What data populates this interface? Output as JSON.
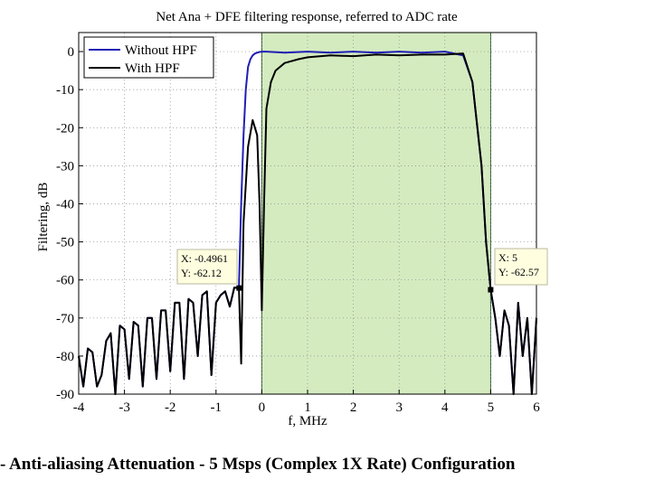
{
  "chart_data": {
    "type": "line",
    "title": "Net Ana + DFE filtering response, referred to ADC rate",
    "xlabel": "f, MHz",
    "ylabel": "Filtering, dB",
    "xlim": [
      -4,
      6
    ],
    "ylim": [
      -90,
      5
    ],
    "xticks": [
      "-4",
      "-3",
      "-2",
      "-1",
      "0",
      "1",
      "2",
      "3",
      "4",
      "5",
      "6"
    ],
    "yticks": [
      "0",
      "-10",
      "-20",
      "-30",
      "-40",
      "-50",
      "-60",
      "-70",
      "-80",
      "-90"
    ],
    "grid": true,
    "legend_position": "top-left",
    "passband_region": {
      "x_start": 0,
      "x_end": 5,
      "color": "#d4ebc0"
    },
    "series": [
      {
        "name": "Without HPF",
        "color": "#1f1fb4",
        "x": [
          -4,
          -3.9,
          -3.8,
          -3.7,
          -3.6,
          -3.5,
          -3.4,
          -3.3,
          -3.2,
          -3.1,
          -3.0,
          -2.9,
          -2.8,
          -2.7,
          -2.6,
          -2.5,
          -2.4,
          -2.3,
          -2.2,
          -2.1,
          -2.0,
          -1.9,
          -1.8,
          -1.7,
          -1.6,
          -1.5,
          -1.4,
          -1.3,
          -1.2,
          -1.1,
          -1.0,
          -0.9,
          -0.8,
          -0.7,
          -0.6,
          -0.5,
          -0.45,
          -0.4,
          -0.35,
          -0.3,
          -0.25,
          -0.2,
          -0.15,
          -0.1,
          -0.05,
          0,
          0.1,
          0.5,
          1,
          1.5,
          2,
          2.5,
          3,
          3.5,
          4,
          4.4,
          4.6,
          4.8,
          4.9,
          5.0,
          5.1,
          5.2,
          5.3,
          5.4,
          5.5,
          5.6,
          5.7,
          5.8,
          5.9,
          6.0
        ],
        "y": [
          -80,
          -88,
          -78,
          -79,
          -88,
          -85,
          -76,
          -74,
          -90,
          -72,
          -73,
          -86,
          -71,
          -72,
          -88,
          -70,
          -70,
          -86,
          -68,
          -68,
          -84,
          -66,
          -66,
          -86,
          -65,
          -66,
          -80,
          -64,
          -63,
          -85,
          -66,
          -64,
          -63,
          -67,
          -62,
          -62.12,
          -40,
          -22,
          -10,
          -4,
          -2,
          -1,
          -0.5,
          -0.3,
          -0.1,
          0,
          0,
          -0.3,
          0,
          -0.3,
          0,
          -0.3,
          0,
          -0.3,
          0,
          -1,
          -8,
          -30,
          -50,
          -62.57,
          -70,
          -80,
          -68,
          -72,
          -90,
          -66,
          -80,
          -70,
          -90,
          -70
        ]
      },
      {
        "name": "With HPF",
        "color": "#000000",
        "x": [
          -4,
          -3.9,
          -3.8,
          -3.7,
          -3.6,
          -3.5,
          -3.4,
          -3.3,
          -3.2,
          -3.1,
          -3.0,
          -2.9,
          -2.8,
          -2.7,
          -2.6,
          -2.5,
          -2.4,
          -2.3,
          -2.2,
          -2.1,
          -2.0,
          -1.9,
          -1.8,
          -1.7,
          -1.6,
          -1.5,
          -1.4,
          -1.3,
          -1.2,
          -1.1,
          -1.0,
          -0.9,
          -0.8,
          -0.7,
          -0.6,
          -0.5,
          -0.45,
          -0.4,
          -0.3,
          -0.2,
          -0.1,
          -0.05,
          0,
          0.05,
          0.1,
          0.2,
          0.3,
          0.5,
          0.8,
          1,
          1.5,
          2,
          2.5,
          3,
          3.5,
          4,
          4.4,
          4.6,
          4.8,
          4.9,
          5.0,
          5.1,
          5.2,
          5.3,
          5.4,
          5.5,
          5.6,
          5.7,
          5.8,
          5.9,
          6.0
        ],
        "y": [
          -80,
          -88,
          -78,
          -79,
          -88,
          -85,
          -76,
          -74,
          -90,
          -72,
          -73,
          -86,
          -71,
          -72,
          -88,
          -70,
          -70,
          -86,
          -68,
          -68,
          -84,
          -66,
          -66,
          -86,
          -65,
          -66,
          -80,
          -64,
          -63,
          -85,
          -66,
          -64,
          -63,
          -67,
          -62,
          -62.12,
          -82,
          -45,
          -25,
          -18,
          -22,
          -40,
          -68,
          -40,
          -15,
          -8,
          -5,
          -3,
          -2,
          -1.5,
          -1,
          -1.2,
          -0.8,
          -1,
          -0.8,
          -0.8,
          -0.5,
          -8,
          -30,
          -50,
          -62.57,
          -70,
          -80,
          -68,
          -72,
          -90,
          -66,
          -80,
          -70,
          -90,
          -70
        ]
      }
    ],
    "annotations": [
      {
        "x": -0.4961,
        "y": -62.12,
        "lines": [
          "X: -0.4961",
          "Y: -62.12"
        ]
      },
      {
        "x": 5,
        "y": -62.57,
        "lines": [
          "X: 5",
          "Y: -62.57"
        ]
      }
    ]
  },
  "caption": "- Anti-aliasing Attenuation - 5 Msps (Complex 1X Rate) Configuration"
}
